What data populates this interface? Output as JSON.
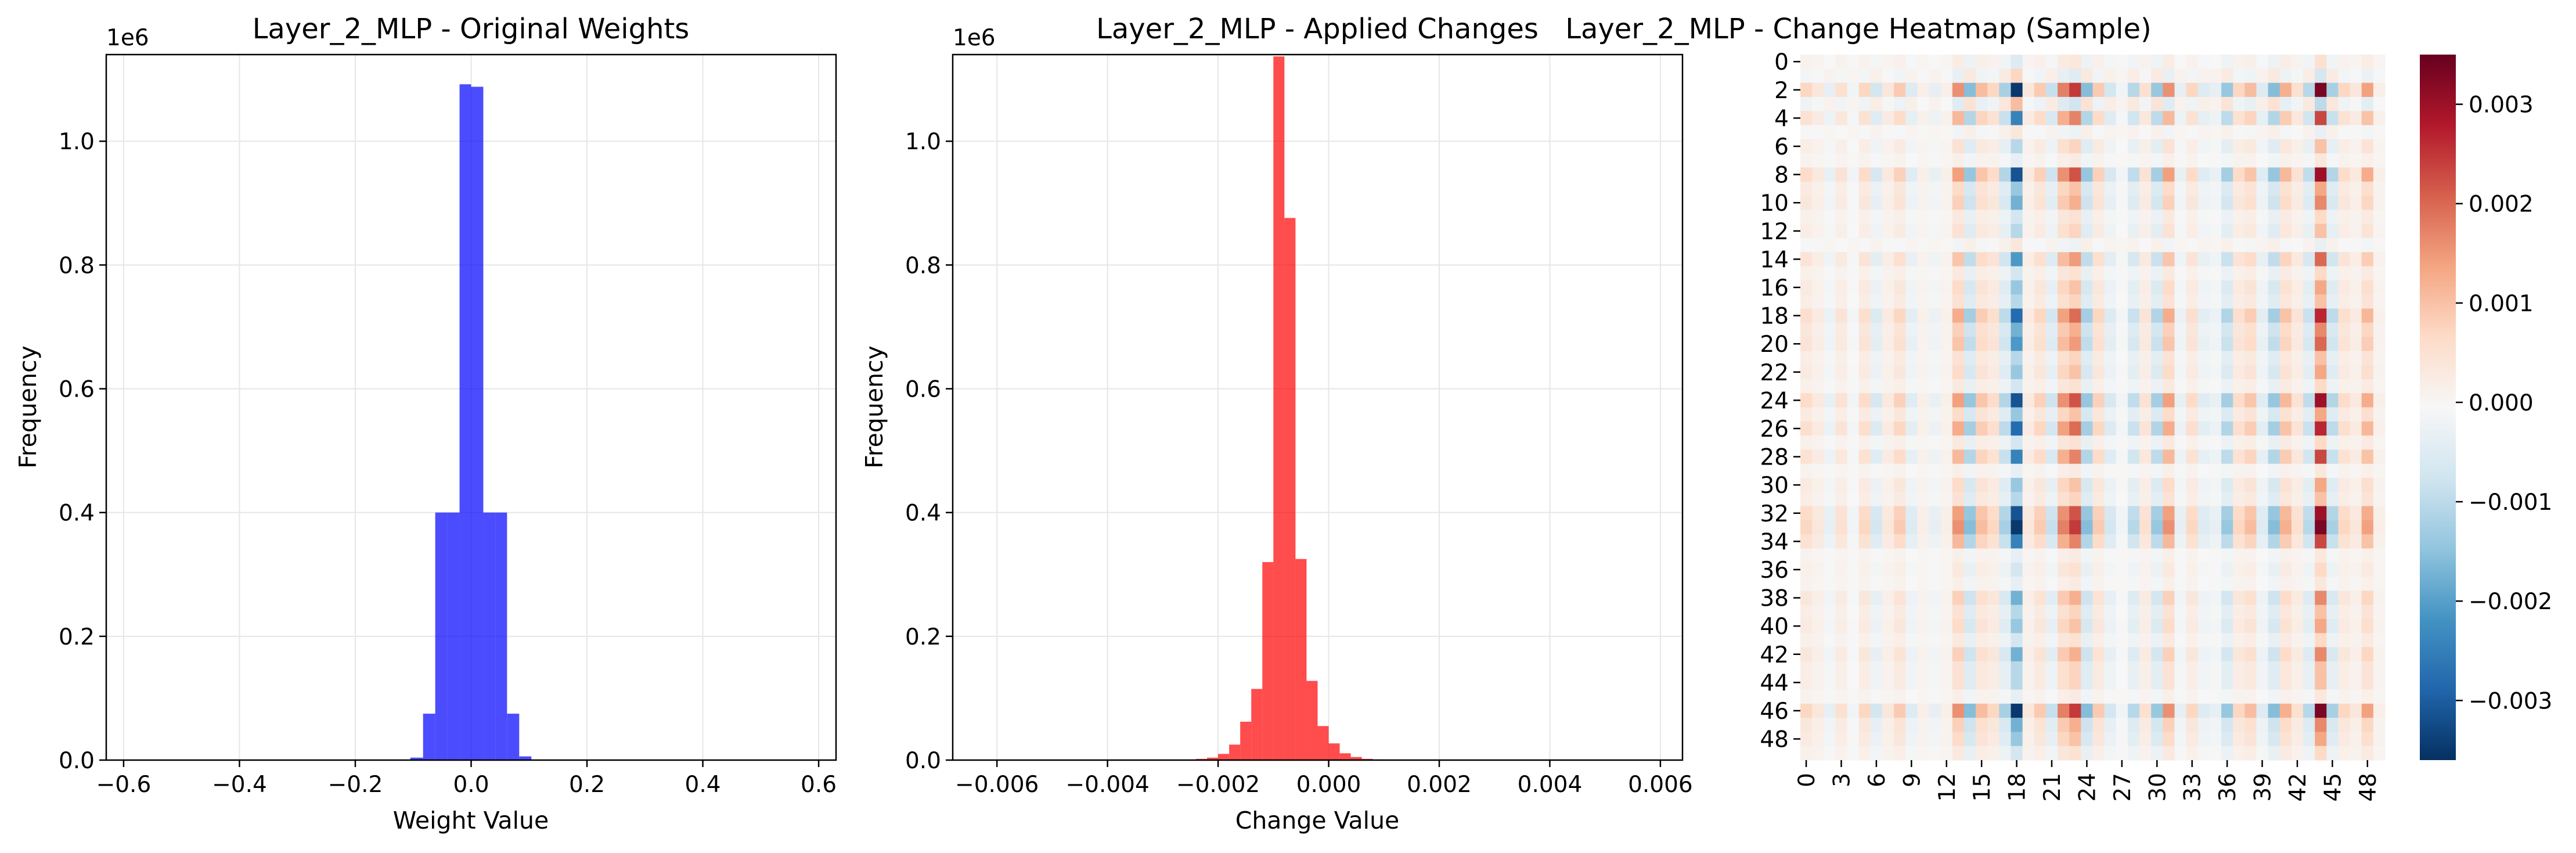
{
  "chart_data": [
    {
      "type": "bar",
      "subtype": "histogram",
      "title": "Layer_2_MLP - Original Weights",
      "xlabel": "Weight Value",
      "ylabel": "Frequency",
      "y_offset_label": "1e6",
      "xlim": [
        -0.63,
        0.63
      ],
      "ylim": [
        0,
        1.14
      ],
      "x_ticks": [
        -0.6,
        -0.4,
        -0.2,
        0.0,
        0.2,
        0.4,
        0.6
      ],
      "x_tick_labels": [
        "−0.6",
        "−0.4",
        "−0.2",
        "0.0",
        "0.2",
        "0.4",
        "0.6"
      ],
      "y_ticks": [
        0.0,
        0.2,
        0.4,
        0.6,
        0.8,
        1.0
      ],
      "y_tick_labels": [
        "0.0",
        "0.2",
        "0.4",
        "0.6",
        "0.8",
        "1.0"
      ],
      "color": "#0000ff",
      "grid": true,
      "bins": [
        {
          "x0": -0.105,
          "x1": -0.083,
          "value": 0.004
        },
        {
          "x0": -0.083,
          "x1": -0.062,
          "value": 0.075
        },
        {
          "x0": -0.062,
          "x1": -0.041,
          "value": 0.4
        },
        {
          "x0": -0.041,
          "x1": -0.02,
          "value": 0.4
        },
        {
          "x0": -0.02,
          "x1": 0.0,
          "value": 1.092
        },
        {
          "x0": 0.0,
          "x1": 0.021,
          "value": 1.088
        },
        {
          "x0": 0.021,
          "x1": 0.042,
          "value": 0.4
        },
        {
          "x0": 0.042,
          "x1": 0.062,
          "value": 0.4
        },
        {
          "x0": 0.062,
          "x1": 0.083,
          "value": 0.075
        },
        {
          "x0": 0.083,
          "x1": 0.104,
          "value": 0.006
        }
      ]
    },
    {
      "type": "bar",
      "subtype": "histogram",
      "title": "Layer_2_MLP - Applied Changes",
      "xlabel": "Change Value",
      "ylabel": "Frequency",
      "y_offset_label": "1e6",
      "xlim": [
        -0.0068,
        0.0064
      ],
      "ylim": [
        0,
        1.14
      ],
      "x_ticks": [
        -0.006,
        -0.004,
        -0.002,
        0.0,
        0.002,
        0.004,
        0.006
      ],
      "x_tick_labels": [
        "−0.006",
        "−0.004",
        "−0.002",
        "0.000",
        "0.002",
        "0.004",
        "0.006"
      ],
      "y_ticks": [
        0.0,
        0.2,
        0.4,
        0.6,
        0.8,
        1.0
      ],
      "y_tick_labels": [
        "0.0",
        "0.2",
        "0.4",
        "0.6",
        "0.8",
        "1.0"
      ],
      "color": "#ff0000",
      "grid": true,
      "bin_start": -0.0026,
      "bin_width": 0.0002,
      "values": [
        0.001,
        0.002,
        0.004,
        0.01,
        0.025,
        0.062,
        0.115,
        0.32,
        1.137,
        0.876,
        0.325,
        0.128,
        0.055,
        0.027,
        0.011,
        0.005,
        0.002,
        0.001,
        0.0005,
        0.0002
      ]
    },
    {
      "type": "heatmap",
      "title": "Layer_2_MLP - Change Heatmap (Sample)",
      "rows": 50,
      "cols": 50,
      "y_tick_labels": [
        "0",
        "2",
        "4",
        "6",
        "8",
        "10",
        "12",
        "14",
        "16",
        "18",
        "20",
        "22",
        "24",
        "26",
        "28",
        "30",
        "32",
        "34",
        "36",
        "38",
        "40",
        "42",
        "44",
        "46",
        "48"
      ],
      "x_tick_labels": [
        "0",
        "3",
        "6",
        "9",
        "12",
        "15",
        "18",
        "21",
        "24",
        "27",
        "30",
        "33",
        "36",
        "39",
        "42",
        "45",
        "48"
      ],
      "colormap": "RdBu_r",
      "vmin": -0.0036,
      "vmax": 0.0035,
      "colorbar_ticks": [
        -0.003,
        -0.002,
        -0.001,
        0.0,
        0.001,
        0.002,
        0.003
      ],
      "colorbar_tick_labels": [
        "−0.003",
        "−0.002",
        "−0.001",
        "0.000",
        "0.001",
        "0.002",
        "0.003"
      ],
      "row_scale": [
        0.15,
        -0.2,
        1.0,
        -0.3,
        0.7,
        -0.1,
        0.3,
        0.1,
        0.9,
        0.4,
        0.5,
        0.2,
        0.3,
        -0.1,
        0.6,
        0.2,
        0.4,
        0.3,
        0.8,
        0.5,
        0.6,
        0.3,
        0.4,
        0.2,
        0.9,
        0.4,
        0.8,
        0.2,
        0.7,
        0.1,
        0.4,
        0.3,
        0.9,
        1.0,
        0.7,
        0.1,
        0.2,
        0.1,
        0.5,
        0.3,
        0.4,
        0.2,
        0.5,
        0.3,
        0.3,
        0.1,
        1.0,
        0.5,
        0.4,
        0.2
      ],
      "col_pattern": [
        0.2,
        0.1,
        -0.1,
        0.15,
        -0.05,
        0.2,
        -0.2,
        0.1,
        0.25,
        -0.15,
        0.05,
        -0.1,
        0.05,
        0.45,
        -0.45,
        0.3,
        0.2,
        -0.35,
        -1.0,
        0.1,
        0.25,
        -0.25,
        0.5,
        0.7,
        -0.45,
        0.25,
        -0.2,
        -0.05,
        -0.3,
        0.15,
        -0.4,
        0.45,
        -0.1,
        0.2,
        -0.15,
        -0.1,
        -0.4,
        0.2,
        0.3,
        -0.15,
        -0.45,
        0.35,
        0.15,
        -0.3,
        0.95,
        -0.35,
        0.2,
        0.1,
        0.4,
        0.05
      ]
    }
  ]
}
